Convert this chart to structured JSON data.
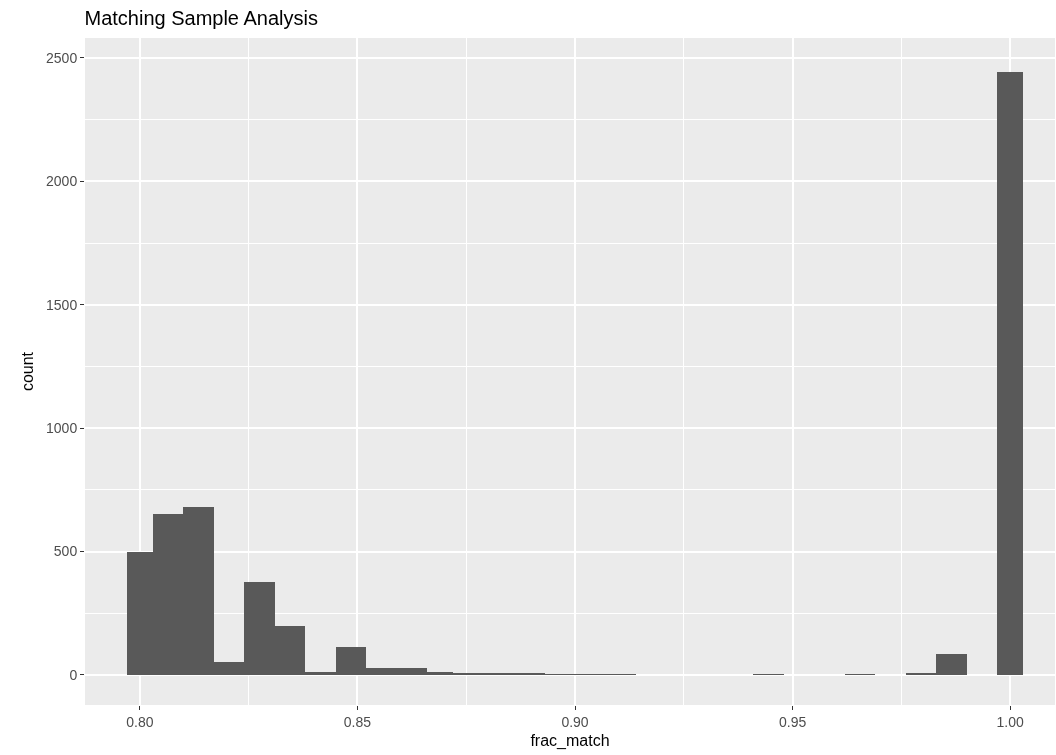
{
  "chart_data": {
    "type": "histogram",
    "title": "Matching Sample Analysis",
    "xlabel": "frac_match",
    "ylabel": "count",
    "bins": [
      0.797,
      0.803,
      0.81,
      0.817,
      0.824,
      0.831,
      0.838,
      0.845,
      0.852,
      0.859,
      0.866,
      0.872,
      0.879,
      0.886,
      0.893,
      0.9,
      0.907,
      0.914,
      0.941,
      0.948,
      0.962,
      0.969,
      0.976,
      0.983,
      0.99,
      0.997,
      1.003
    ],
    "values": [
      500,
      653,
      681,
      51,
      378,
      199,
      13,
      112,
      28,
      28,
      13,
      7,
      7,
      5,
      1,
      1,
      1,
      0,
      1,
      0,
      1,
      0,
      8,
      83,
      0,
      2445
    ],
    "color": "#595959",
    "xlim": [
      0.7874,
      1.0103
    ],
    "xticks": [
      {
        "value": 0.8,
        "label": "0.80"
      },
      0.85,
      {
        "value": 0.9,
        "label": "0.90"
      },
      0.95,
      {
        "value": 1.0,
        "label": "1.00"
      }
    ],
    "ylim": [
      -122,
      2581
    ],
    "yticks": [
      0,
      500,
      1000,
      1500,
      2000,
      2500
    ],
    "grid": true
  }
}
